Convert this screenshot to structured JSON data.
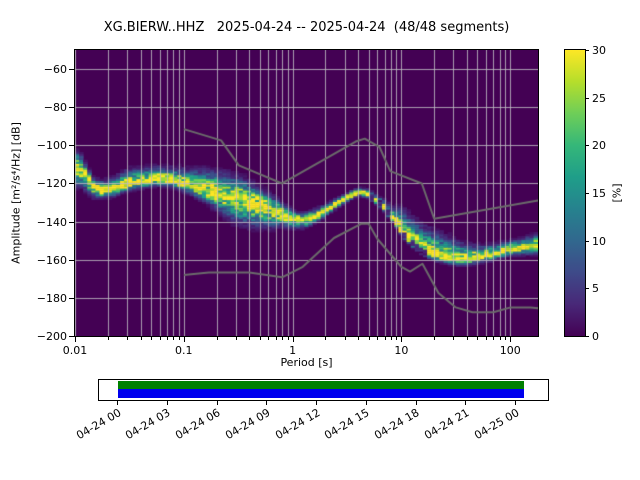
{
  "figure": {
    "title": "XG.BIERW..HHZ   2025-04-24 -- 2025-04-24  (48/48 segments)"
  },
  "chart_data": {
    "type": "heatmap",
    "subtype": "ppsd-probability-histogram",
    "title": "XG.BIERW..HHZ   2025-04-24 -- 2025-04-24  (48/48 segments)",
    "xlabel": "Period [s]",
    "ylabel": "Amplitude [m²/s⁴/Hz] [dB]",
    "colorbar_label": "[%]",
    "x_scale": "log",
    "x_range": [
      0.01,
      180
    ],
    "y_range": [
      -200,
      -50
    ],
    "color_range": [
      0,
      30
    ],
    "grid": true,
    "x_tick_labels": [
      "0.01",
      "0.1",
      "1",
      "10",
      "100"
    ],
    "x_tick_values": [
      0.01,
      0.1,
      1,
      10,
      100
    ],
    "y_tick_values": [
      -60,
      -80,
      -100,
      -120,
      -140,
      -160,
      -180,
      -200
    ],
    "y_tick_labels": [
      "−60",
      "−80",
      "−100",
      "−120",
      "−140",
      "−160",
      "−180",
      "−200"
    ],
    "colorbar_tick_values": [
      0,
      5,
      10,
      15,
      20,
      25,
      30
    ],
    "colorbar_tick_labels": [
      "0",
      "5",
      "10",
      "15",
      "20",
      "25",
      "30"
    ],
    "colormap": "viridis",
    "colormap_stops": [
      "#440154",
      "#482878",
      "#3e4a89",
      "#31688e",
      "#26828e",
      "#1f9e89",
      "#35b779",
      "#6ece58",
      "#b5de2b",
      "#fde725"
    ],
    "background_color": "#440154",
    "grid_color": "#bdbac2",
    "noise_model_color": "#6b6b6b",
    "psd_mode_line_period_db": [
      [
        0.01,
        -110.5
      ],
      [
        0.0115,
        -112.5
      ],
      [
        0.013,
        -117
      ],
      [
        0.015,
        -122
      ],
      [
        0.018,
        -123.5
      ],
      [
        0.022,
        -123
      ],
      [
        0.028,
        -121
      ],
      [
        0.035,
        -119.5
      ],
      [
        0.045,
        -118.5
      ],
      [
        0.055,
        -117.5
      ],
      [
        0.07,
        -117.8
      ],
      [
        0.09,
        -119.3
      ],
      [
        0.115,
        -121
      ],
      [
        0.145,
        -122.5
      ],
      [
        0.18,
        -124
      ],
      [
        0.23,
        -125.5
      ],
      [
        0.29,
        -127
      ],
      [
        0.37,
        -128.5
      ],
      [
        0.47,
        -130.5
      ],
      [
        0.6,
        -132.5
      ],
      [
        0.75,
        -135
      ],
      [
        0.9,
        -137.2
      ],
      [
        1.1,
        -138.8
      ],
      [
        1.3,
        -139
      ],
      [
        1.6,
        -137.2
      ],
      [
        2.0,
        -134
      ],
      [
        2.5,
        -130.5
      ],
      [
        3.2,
        -127
      ],
      [
        4.0,
        -124.3
      ],
      [
        4.7,
        -124.8
      ],
      [
        5.6,
        -127.5
      ],
      [
        7.0,
        -132.5
      ],
      [
        8.5,
        -139
      ],
      [
        10.5,
        -146.5
      ],
      [
        13,
        -152
      ],
      [
        16,
        -155.5
      ],
      [
        20,
        -157.5
      ],
      [
        25,
        -159
      ],
      [
        32,
        -160
      ],
      [
        40,
        -159.5
      ],
      [
        50,
        -158.5
      ],
      [
        63,
        -157.5
      ],
      [
        80,
        -156
      ],
      [
        100,
        -154.5
      ],
      [
        126,
        -153.5
      ],
      [
        160,
        -152.5
      ],
      [
        180,
        -152
      ]
    ],
    "psd_spread_period_above_below_db": [
      [
        0.01,
        9,
        11
      ],
      [
        0.013,
        6,
        8
      ],
      [
        0.016,
        5,
        5
      ],
      [
        0.022,
        6,
        4
      ],
      [
        0.03,
        8,
        4
      ],
      [
        0.05,
        7,
        4
      ],
      [
        0.08,
        7,
        4
      ],
      [
        0.115,
        9,
        5
      ],
      [
        0.16,
        11,
        7
      ],
      [
        0.23,
        12,
        11
      ],
      [
        0.3,
        12,
        14
      ],
      [
        0.45,
        10,
        13
      ],
      [
        0.6,
        8,
        11
      ],
      [
        0.8,
        6,
        7
      ],
      [
        1.1,
        4,
        5
      ],
      [
        1.6,
        4,
        4
      ],
      [
        2.2,
        3,
        3
      ],
      [
        3.2,
        2.5,
        2.5
      ],
      [
        4.5,
        2.5,
        2.5
      ],
      [
        6,
        3,
        2.5
      ],
      [
        8,
        5,
        2.5
      ],
      [
        10,
        13,
        2.5
      ],
      [
        14,
        14,
        2.5
      ],
      [
        20,
        13,
        3
      ],
      [
        30,
        11,
        3
      ],
      [
        40,
        8,
        3.5
      ],
      [
        55,
        6,
        3.5
      ],
      [
        80,
        5,
        3.5
      ],
      [
        120,
        5,
        4
      ],
      [
        180,
        6,
        5
      ]
    ],
    "noise_models": {
      "nhnm_period_db": [
        [
          0.1,
          -91.5
        ],
        [
          0.22,
          -97.4
        ],
        [
          0.32,
          -110.5
        ],
        [
          0.8,
          -120
        ],
        [
          3.8,
          -98
        ],
        [
          4.6,
          -96.5
        ],
        [
          6.3,
          -101
        ],
        [
          7.9,
          -113.5
        ],
        [
          15.4,
          -120
        ],
        [
          20,
          -138.5
        ],
        [
          180,
          -128.9
        ]
      ],
      "nlnm_period_db": [
        [
          0.1,
          -168
        ],
        [
          0.17,
          -166.7
        ],
        [
          0.4,
          -166.7
        ],
        [
          0.8,
          -169.2
        ],
        [
          1.24,
          -163.7
        ],
        [
          2.4,
          -148.6
        ],
        [
          4.3,
          -141.1
        ],
        [
          5,
          -141.1
        ],
        [
          6,
          -149
        ],
        [
          10,
          -163.8
        ],
        [
          12,
          -166.2
        ],
        [
          15.6,
          -162.1
        ],
        [
          21.9,
          -177.5
        ],
        [
          31.6,
          -185
        ],
        [
          45,
          -187.5
        ],
        [
          70,
          -187.5
        ],
        [
          101,
          -185
        ],
        [
          154,
          -185
        ],
        [
          180,
          -185.4
        ]
      ]
    }
  },
  "timeline": {
    "tick_labels": [
      "04-24 00",
      "04-24 03",
      "04-24 06",
      "04-24 09",
      "04-24 12",
      "04-24 15",
      "04-24 18",
      "04-24 21",
      "04-25 00"
    ],
    "coverage_color": "#008000",
    "processed_color": "#0000ee",
    "box_color": "#ffffff"
  }
}
